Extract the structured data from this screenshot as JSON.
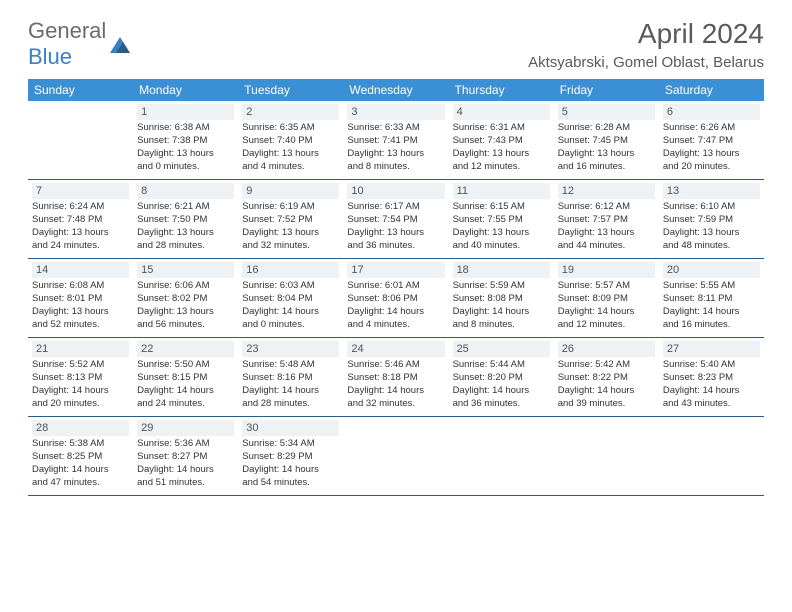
{
  "logo": {
    "text1": "General",
    "text2": "Blue"
  },
  "title": "April 2024",
  "location": "Aktsyabrski, Gomel Oblast, Belarus",
  "colors": {
    "header_bg": "#3b8fd4",
    "header_text": "#ffffff",
    "row_border": "#2d5b86",
    "daynum_bg": "#eef2f5",
    "daynum_text": "#4a5560",
    "body_text": "#333333",
    "logo_gray": "#6b6b6b",
    "logo_blue": "#3b7fc4"
  },
  "dayheads": [
    "Sunday",
    "Monday",
    "Tuesday",
    "Wednesday",
    "Thursday",
    "Friday",
    "Saturday"
  ],
  "weeks": [
    [
      {
        "n": "",
        "l1": "",
        "l2": "",
        "l3": "",
        "l4": "",
        "empty": true
      },
      {
        "n": "1",
        "l1": "Sunrise: 6:38 AM",
        "l2": "Sunset: 7:38 PM",
        "l3": "Daylight: 13 hours",
        "l4": "and 0 minutes."
      },
      {
        "n": "2",
        "l1": "Sunrise: 6:35 AM",
        "l2": "Sunset: 7:40 PM",
        "l3": "Daylight: 13 hours",
        "l4": "and 4 minutes."
      },
      {
        "n": "3",
        "l1": "Sunrise: 6:33 AM",
        "l2": "Sunset: 7:41 PM",
        "l3": "Daylight: 13 hours",
        "l4": "and 8 minutes."
      },
      {
        "n": "4",
        "l1": "Sunrise: 6:31 AM",
        "l2": "Sunset: 7:43 PM",
        "l3": "Daylight: 13 hours",
        "l4": "and 12 minutes."
      },
      {
        "n": "5",
        "l1": "Sunrise: 6:28 AM",
        "l2": "Sunset: 7:45 PM",
        "l3": "Daylight: 13 hours",
        "l4": "and 16 minutes."
      },
      {
        "n": "6",
        "l1": "Sunrise: 6:26 AM",
        "l2": "Sunset: 7:47 PM",
        "l3": "Daylight: 13 hours",
        "l4": "and 20 minutes."
      }
    ],
    [
      {
        "n": "7",
        "l1": "Sunrise: 6:24 AM",
        "l2": "Sunset: 7:48 PM",
        "l3": "Daylight: 13 hours",
        "l4": "and 24 minutes."
      },
      {
        "n": "8",
        "l1": "Sunrise: 6:21 AM",
        "l2": "Sunset: 7:50 PM",
        "l3": "Daylight: 13 hours",
        "l4": "and 28 minutes."
      },
      {
        "n": "9",
        "l1": "Sunrise: 6:19 AM",
        "l2": "Sunset: 7:52 PM",
        "l3": "Daylight: 13 hours",
        "l4": "and 32 minutes."
      },
      {
        "n": "10",
        "l1": "Sunrise: 6:17 AM",
        "l2": "Sunset: 7:54 PM",
        "l3": "Daylight: 13 hours",
        "l4": "and 36 minutes."
      },
      {
        "n": "11",
        "l1": "Sunrise: 6:15 AM",
        "l2": "Sunset: 7:55 PM",
        "l3": "Daylight: 13 hours",
        "l4": "and 40 minutes."
      },
      {
        "n": "12",
        "l1": "Sunrise: 6:12 AM",
        "l2": "Sunset: 7:57 PM",
        "l3": "Daylight: 13 hours",
        "l4": "and 44 minutes."
      },
      {
        "n": "13",
        "l1": "Sunrise: 6:10 AM",
        "l2": "Sunset: 7:59 PM",
        "l3": "Daylight: 13 hours",
        "l4": "and 48 minutes."
      }
    ],
    [
      {
        "n": "14",
        "l1": "Sunrise: 6:08 AM",
        "l2": "Sunset: 8:01 PM",
        "l3": "Daylight: 13 hours",
        "l4": "and 52 minutes."
      },
      {
        "n": "15",
        "l1": "Sunrise: 6:06 AM",
        "l2": "Sunset: 8:02 PM",
        "l3": "Daylight: 13 hours",
        "l4": "and 56 minutes."
      },
      {
        "n": "16",
        "l1": "Sunrise: 6:03 AM",
        "l2": "Sunset: 8:04 PM",
        "l3": "Daylight: 14 hours",
        "l4": "and 0 minutes."
      },
      {
        "n": "17",
        "l1": "Sunrise: 6:01 AM",
        "l2": "Sunset: 8:06 PM",
        "l3": "Daylight: 14 hours",
        "l4": "and 4 minutes."
      },
      {
        "n": "18",
        "l1": "Sunrise: 5:59 AM",
        "l2": "Sunset: 8:08 PM",
        "l3": "Daylight: 14 hours",
        "l4": "and 8 minutes."
      },
      {
        "n": "19",
        "l1": "Sunrise: 5:57 AM",
        "l2": "Sunset: 8:09 PM",
        "l3": "Daylight: 14 hours",
        "l4": "and 12 minutes."
      },
      {
        "n": "20",
        "l1": "Sunrise: 5:55 AM",
        "l2": "Sunset: 8:11 PM",
        "l3": "Daylight: 14 hours",
        "l4": "and 16 minutes."
      }
    ],
    [
      {
        "n": "21",
        "l1": "Sunrise: 5:52 AM",
        "l2": "Sunset: 8:13 PM",
        "l3": "Daylight: 14 hours",
        "l4": "and 20 minutes."
      },
      {
        "n": "22",
        "l1": "Sunrise: 5:50 AM",
        "l2": "Sunset: 8:15 PM",
        "l3": "Daylight: 14 hours",
        "l4": "and 24 minutes."
      },
      {
        "n": "23",
        "l1": "Sunrise: 5:48 AM",
        "l2": "Sunset: 8:16 PM",
        "l3": "Daylight: 14 hours",
        "l4": "and 28 minutes."
      },
      {
        "n": "24",
        "l1": "Sunrise: 5:46 AM",
        "l2": "Sunset: 8:18 PM",
        "l3": "Daylight: 14 hours",
        "l4": "and 32 minutes."
      },
      {
        "n": "25",
        "l1": "Sunrise: 5:44 AM",
        "l2": "Sunset: 8:20 PM",
        "l3": "Daylight: 14 hours",
        "l4": "and 36 minutes."
      },
      {
        "n": "26",
        "l1": "Sunrise: 5:42 AM",
        "l2": "Sunset: 8:22 PM",
        "l3": "Daylight: 14 hours",
        "l4": "and 39 minutes."
      },
      {
        "n": "27",
        "l1": "Sunrise: 5:40 AM",
        "l2": "Sunset: 8:23 PM",
        "l3": "Daylight: 14 hours",
        "l4": "and 43 minutes."
      }
    ],
    [
      {
        "n": "28",
        "l1": "Sunrise: 5:38 AM",
        "l2": "Sunset: 8:25 PM",
        "l3": "Daylight: 14 hours",
        "l4": "and 47 minutes."
      },
      {
        "n": "29",
        "l1": "Sunrise: 5:36 AM",
        "l2": "Sunset: 8:27 PM",
        "l3": "Daylight: 14 hours",
        "l4": "and 51 minutes."
      },
      {
        "n": "30",
        "l1": "Sunrise: 5:34 AM",
        "l2": "Sunset: 8:29 PM",
        "l3": "Daylight: 14 hours",
        "l4": "and 54 minutes."
      },
      {
        "n": "",
        "l1": "",
        "l2": "",
        "l3": "",
        "l4": "",
        "empty": true
      },
      {
        "n": "",
        "l1": "",
        "l2": "",
        "l3": "",
        "l4": "",
        "empty": true
      },
      {
        "n": "",
        "l1": "",
        "l2": "",
        "l3": "",
        "l4": "",
        "empty": true
      },
      {
        "n": "",
        "l1": "",
        "l2": "",
        "l3": "",
        "l4": "",
        "empty": true
      }
    ]
  ]
}
